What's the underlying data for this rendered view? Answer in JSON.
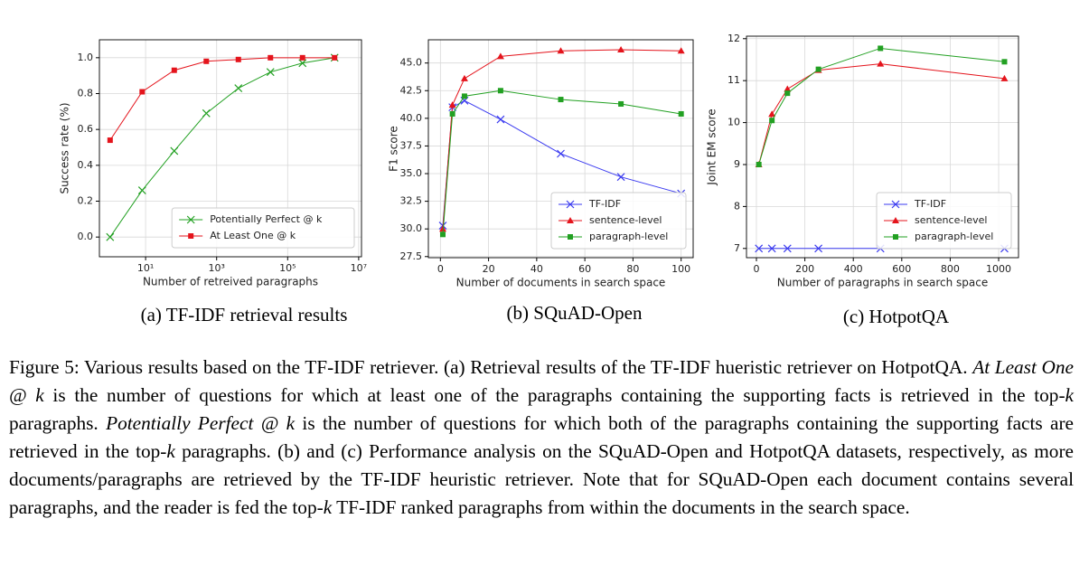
{
  "chart_data": [
    {
      "type": "line",
      "xlabel": "Number of retreived paragraphs",
      "ylabel": "Success rate (%)",
      "subcaption": "(a) TF-IDF retrieval results",
      "xscale": "log",
      "grid": true,
      "legend": "lower right",
      "x": [
        1,
        8,
        64,
        512,
        4096,
        32768,
        262144,
        2097152
      ],
      "series": [
        {
          "name": "Potentially Perfect @ k",
          "color": "#22a022",
          "marker": "x",
          "values": [
            0.0,
            0.26,
            0.48,
            0.69,
            0.83,
            0.92,
            0.97,
            1.0
          ]
        },
        {
          "name": "At Least One @ k",
          "color": "#e4141c",
          "marker": "s",
          "values": [
            0.54,
            0.81,
            0.93,
            0.98,
            0.99,
            1.0,
            1.0,
            1.0
          ]
        }
      ],
      "xlim": [
        0.5,
        12000000
      ],
      "ylim": [
        -0.11,
        1.1
      ],
      "xticks": [
        {
          "value": 10,
          "label": "10¹"
        },
        {
          "value": 1000,
          "label": "10³"
        },
        {
          "value": 100000,
          "label": "10⁵"
        },
        {
          "value": 10000000,
          "label": "10⁷"
        }
      ],
      "yticks": [
        {
          "value": 0,
          "label": "0.0"
        },
        0.2,
        0.4,
        0.6,
        0.8,
        {
          "value": 1,
          "label": "1.0"
        }
      ]
    },
    {
      "type": "line",
      "xlabel": "Number of documents in search space",
      "ylabel": "F1 score",
      "subcaption": "(b) SQuAD-Open",
      "grid": true,
      "legend": "lower right",
      "x": [
        1,
        5,
        10,
        25,
        50,
        75,
        100
      ],
      "series": [
        {
          "name": "TF-IDF",
          "color": "#3a3af0",
          "marker": "x",
          "values": [
            30.3,
            41.0,
            41.6,
            39.9,
            36.8,
            34.7,
            33.2
          ]
        },
        {
          "name": "sentence-level",
          "color": "#e4141c",
          "marker": "^",
          "values": [
            30.0,
            41.2,
            43.6,
            45.6,
            46.1,
            46.2,
            46.1
          ]
        },
        {
          "name": "paragraph-level",
          "color": "#22a022",
          "marker": "s",
          "values": [
            29.5,
            40.4,
            42.0,
            42.5,
            41.7,
            41.3,
            40.4
          ]
        }
      ],
      "xlim": [
        -5,
        105
      ],
      "ylim": [
        27.4,
        47.1
      ],
      "xticks": [
        0,
        20,
        40,
        60,
        80,
        100
      ],
      "yticks": [
        27.5,
        {
          "value": 30,
          "label": "30.0"
        },
        32.5,
        {
          "value": 35,
          "label": "35.0"
        },
        37.5,
        {
          "value": 40,
          "label": "40.0"
        },
        42.5,
        {
          "value": 45,
          "label": "45.0"
        }
      ]
    },
    {
      "type": "line",
      "xlabel": "Number of paragraphs in search space",
      "ylabel": "Joint EM score",
      "subcaption": "(c) HotpotQA",
      "grid": true,
      "legend": "lower right",
      "x": [
        10,
        64,
        128,
        256,
        512,
        1024
      ],
      "series": [
        {
          "name": "TF-IDF",
          "color": "#3a3af0",
          "marker": "x",
          "values": [
            7.0,
            7.0,
            7.0,
            7.0,
            7.0,
            7.0
          ]
        },
        {
          "name": "sentence-level",
          "color": "#e4141c",
          "marker": "^",
          "values": [
            9.0,
            10.2,
            10.8,
            11.25,
            11.4,
            11.05
          ]
        },
        {
          "name": "paragraph-level",
          "color": "#22a022",
          "marker": "s",
          "values": [
            9.0,
            10.05,
            10.7,
            11.27,
            11.77,
            11.45
          ]
        }
      ],
      "xlim": [
        -41,
        1082
      ],
      "ylim": [
        6.78,
        12.06
      ],
      "xticks": [
        0,
        200,
        400,
        600,
        800,
        1000
      ],
      "yticks": [
        7,
        8,
        9,
        10,
        11,
        12
      ]
    }
  ],
  "caption": [
    {
      "text": "Figure 5: Various results based on the TF-IDF retriever. (a) Retrieval results of the TF-IDF hueristic retriever on HotpotQA. "
    },
    {
      "text": "At Least One @ k",
      "italic": true
    },
    {
      "text": " is the number of questions for which at least one of the paragraphs containing the supporting facts is retrieved in the top-"
    },
    {
      "text": "k",
      "italic": true
    },
    {
      "text": " paragraphs. "
    },
    {
      "text": "Potentially Perfect @ k",
      "italic": true
    },
    {
      "text": " is the number of questions for which both of the paragraphs containing the supporting facts are retrieved in the top-"
    },
    {
      "text": "k",
      "italic": true
    },
    {
      "text": " paragraphs. (b) and (c) Performance analysis on the SQuAD-Open and HotpotQA datasets, respectively, as more documents/paragraphs are retrieved by the TF-IDF heuristic retriever. Note that for SQuAD-Open each document contains several paragraphs, and the reader is fed the top-"
    },
    {
      "text": "k",
      "italic": true
    },
    {
      "text": " TF-IDF ranked paragraphs from within the documents in the search space."
    }
  ]
}
